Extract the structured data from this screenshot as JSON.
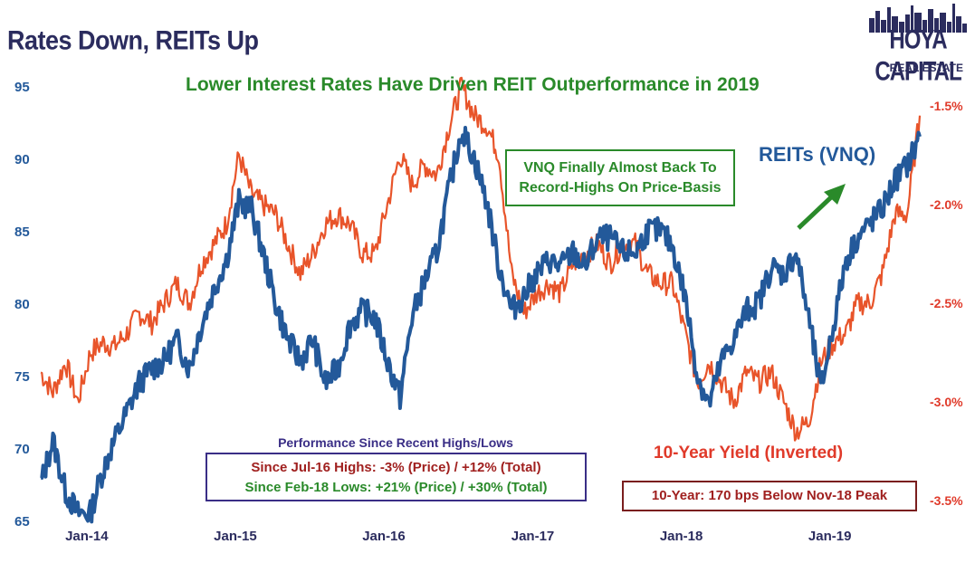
{
  "header": {
    "title": "Rates Down, REITs Up",
    "subtitle": "Lower Interest Rates Have Driven REIT Outperformance in 2019"
  },
  "logo": {
    "line1": "HOYA CAPITAL",
    "line2": "REAL ESTATE",
    "icon": "city-skyline-icon"
  },
  "annotations": {
    "vnq_note_line1": "VNQ Finally Almost Back To",
    "vnq_note_line2": "Record-Highs On Price-Basis",
    "reits_label": "REITs (VNQ)",
    "yield_label": "10-Year Yield (Inverted)",
    "perf_title": "Performance Since Recent Highs/Lows",
    "perf_line1": "Since Jul-16 Highs: -3% (Price) / +12% (Total)",
    "perf_line2": "Since Feb-18 Lows: +21% (Price) / +30% (Total)",
    "yield_note": "10-Year: 170 bps Below Nov-18 Peak"
  },
  "colors": {
    "vnq": "#23599a",
    "yield": "#e8542a",
    "title": "#2b2c5e",
    "subtitle_green": "#2a8a2a",
    "left_axis": "#23599a",
    "right_axis": "#e03a2a",
    "perf_box_border": "#3a2e86",
    "note_box_border": "#7a1e1e",
    "dark_red": "#a0201f"
  },
  "chart_data": {
    "type": "line",
    "x_ticks": [
      "Jan-14",
      "Jan-15",
      "Jan-16",
      "Jan-17",
      "Jan-18",
      "Jan-19"
    ],
    "xlim": [
      "2013-09-01",
      "2019-08-10"
    ],
    "y_left": {
      "ylim": [
        65,
        95
      ],
      "ticks": [
        65,
        70,
        75,
        80,
        85,
        90,
        95
      ]
    },
    "y_right": {
      "inverted": true,
      "ylim": [
        -1.4,
        -3.6
      ],
      "ticks": [
        "-1.5%",
        "-2.0%",
        "-2.5%",
        "-3.0%",
        "-3.5%"
      ],
      "tick_values": [
        -1.5,
        -2.0,
        -2.5,
        -3.0,
        -3.5
      ]
    },
    "series": [
      {
        "name": "REITs (VNQ)",
        "axis": "left",
        "x": [
          "2013-09-01",
          "2013-10-01",
          "2013-11-01",
          "2013-12-01",
          "2014-01-01",
          "2014-02-01",
          "2014-03-01",
          "2014-04-01",
          "2014-05-01",
          "2014-06-01",
          "2014-07-01",
          "2014-08-01",
          "2014-09-01",
          "2014-10-01",
          "2014-11-01",
          "2014-12-01",
          "2015-01-01",
          "2015-02-01",
          "2015-03-01",
          "2015-04-01",
          "2015-05-01",
          "2015-06-01",
          "2015-07-01",
          "2015-08-01",
          "2015-09-01",
          "2015-10-01",
          "2015-11-01",
          "2015-12-01",
          "2016-01-01",
          "2016-02-01",
          "2016-03-01",
          "2016-04-01",
          "2016-05-01",
          "2016-06-01",
          "2016-07-01",
          "2016-08-01",
          "2016-09-01",
          "2016-10-01",
          "2016-11-01",
          "2016-12-01",
          "2017-01-01",
          "2017-02-01",
          "2017-03-01",
          "2017-04-01",
          "2017-05-01",
          "2017-06-01",
          "2017-07-01",
          "2017-08-01",
          "2017-09-01",
          "2017-10-01",
          "2017-11-01",
          "2017-12-01",
          "2018-01-01",
          "2018-02-01",
          "2018-03-01",
          "2018-04-01",
          "2018-05-01",
          "2018-06-01",
          "2018-07-01",
          "2018-08-01",
          "2018-09-01",
          "2018-10-01",
          "2018-11-01",
          "2018-12-01",
          "2019-01-01",
          "2019-02-01",
          "2019-03-01",
          "2019-04-01",
          "2019-05-01",
          "2019-06-01",
          "2019-07-01",
          "2019-08-01"
        ],
        "values": [
          67.5,
          70.5,
          67.0,
          65.5,
          65.5,
          68.5,
          70.5,
          72.5,
          74.5,
          75.5,
          76.0,
          77.5,
          75.5,
          78.5,
          81.0,
          83.0,
          87.0,
          86.5,
          83.5,
          80.0,
          77.5,
          76.0,
          77.5,
          74.5,
          75.5,
          78.5,
          79.5,
          79.0,
          76.0,
          73.5,
          79.0,
          81.5,
          83.5,
          88.0,
          92.0,
          90.0,
          87.0,
          82.5,
          79.5,
          80.5,
          82.0,
          83.0,
          82.5,
          83.5,
          82.5,
          84.5,
          84.5,
          83.5,
          83.5,
          85.0,
          85.0,
          84.0,
          80.5,
          75.0,
          73.0,
          76.0,
          77.5,
          79.5,
          80.0,
          82.5,
          82.0,
          83.5,
          79.0,
          74.0,
          78.5,
          83.0,
          84.5,
          85.5,
          86.5,
          88.5,
          89.5,
          91.5
        ]
      },
      {
        "name": "10-Year Yield (Inverted)",
        "axis": "right",
        "x": [
          "2013-09-01",
          "2013-10-01",
          "2013-11-01",
          "2013-12-01",
          "2014-01-01",
          "2014-02-01",
          "2014-03-01",
          "2014-04-01",
          "2014-05-01",
          "2014-06-01",
          "2014-07-01",
          "2014-08-01",
          "2014-09-01",
          "2014-10-01",
          "2014-11-01",
          "2014-12-01",
          "2015-01-01",
          "2015-02-01",
          "2015-03-01",
          "2015-04-01",
          "2015-05-01",
          "2015-06-01",
          "2015-07-01",
          "2015-08-01",
          "2015-09-01",
          "2015-10-01",
          "2015-11-01",
          "2015-12-01",
          "2016-01-01",
          "2016-02-01",
          "2016-03-01",
          "2016-04-01",
          "2016-05-01",
          "2016-06-01",
          "2016-07-01",
          "2016-08-01",
          "2016-09-01",
          "2016-10-01",
          "2016-11-01",
          "2016-12-01",
          "2017-01-01",
          "2017-02-01",
          "2017-03-01",
          "2017-04-01",
          "2017-05-01",
          "2017-06-01",
          "2017-07-01",
          "2017-08-01",
          "2017-09-01",
          "2017-10-01",
          "2017-11-01",
          "2017-12-01",
          "2018-01-01",
          "2018-02-01",
          "2018-03-01",
          "2018-04-01",
          "2018-05-01",
          "2018-06-01",
          "2018-07-01",
          "2018-08-01",
          "2018-09-01",
          "2018-10-01",
          "2018-11-01",
          "2018-12-01",
          "2019-01-01",
          "2019-02-01",
          "2019-03-01",
          "2019-04-01",
          "2019-05-01",
          "2019-06-01",
          "2019-07-01",
          "2019-08-01"
        ],
        "values": [
          -2.85,
          -2.95,
          -2.8,
          -3.0,
          -2.75,
          -2.7,
          -2.72,
          -2.65,
          -2.55,
          -2.6,
          -2.5,
          -2.4,
          -2.5,
          -2.3,
          -2.2,
          -2.1,
          -1.75,
          -1.95,
          -2.0,
          -2.05,
          -2.2,
          -2.35,
          -2.25,
          -2.1,
          -2.05,
          -2.1,
          -2.25,
          -2.25,
          -2.0,
          -1.75,
          -1.9,
          -1.8,
          -1.85,
          -1.6,
          -1.4,
          -1.55,
          -1.6,
          -1.75,
          -2.35,
          -2.55,
          -2.45,
          -2.4,
          -2.45,
          -2.3,
          -2.25,
          -2.2,
          -2.3,
          -2.2,
          -2.2,
          -2.35,
          -2.4,
          -2.4,
          -2.65,
          -2.9,
          -2.8,
          -2.9,
          -3.0,
          -2.85,
          -2.9,
          -2.85,
          -3.0,
          -3.15,
          -3.1,
          -2.8,
          -2.7,
          -2.65,
          -2.5,
          -2.5,
          -2.35,
          -2.05,
          -2.05,
          -1.55
        ]
      }
    ]
  }
}
